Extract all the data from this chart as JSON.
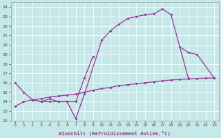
{
  "xlabel": "Windchill (Refroidissement éolien,°C)",
  "bg_color": "#c5e8e8",
  "line_color": "#993399",
  "grid_color": "#ffffff",
  "xlim": [
    -0.5,
    23.5
  ],
  "ylim": [
    12,
    24.5
  ],
  "yticks": [
    12,
    13,
    14,
    15,
    16,
    17,
    18,
    19,
    20,
    21,
    22,
    23,
    24
  ],
  "xticks": [
    0,
    1,
    2,
    3,
    4,
    5,
    6,
    7,
    8,
    9,
    10,
    11,
    12,
    13,
    14,
    15,
    16,
    17,
    18,
    19,
    20,
    21,
    22,
    23
  ],
  "line1_x": [
    0,
    1,
    2,
    3,
    4,
    5,
    6,
    7,
    8,
    10,
    11,
    12,
    13,
    14,
    15,
    16,
    17,
    18,
    20
  ],
  "line1_y": [
    16.0,
    15.0,
    14.2,
    14.0,
    14.0,
    14.0,
    14.0,
    12.2,
    14.8,
    20.5,
    21.5,
    22.2,
    22.8,
    23.0,
    23.2,
    23.3,
    23.8,
    23.2,
    16.5
  ],
  "line2_x": [
    2,
    3,
    4,
    5,
    6,
    7,
    8,
    9,
    19,
    20,
    21,
    23
  ],
  "line2_y": [
    14.2,
    14.0,
    14.3,
    14.0,
    14.0,
    14.0,
    16.5,
    18.8,
    19.8,
    19.2,
    19.0,
    16.5
  ],
  "line3_x": [
    0,
    1,
    2,
    3,
    4,
    5,
    6,
    7,
    8,
    9,
    10,
    11,
    12,
    13,
    14,
    15,
    16,
    17,
    18,
    19,
    20,
    21,
    22,
    23
  ],
  "line3_y": [
    13.5,
    14.0,
    14.2,
    14.3,
    14.5,
    14.6,
    14.7,
    14.8,
    15.0,
    15.2,
    15.4,
    15.5,
    15.7,
    15.8,
    15.9,
    16.0,
    16.1,
    16.2,
    16.3,
    16.35,
    16.4,
    16.45,
    16.5,
    16.5
  ]
}
